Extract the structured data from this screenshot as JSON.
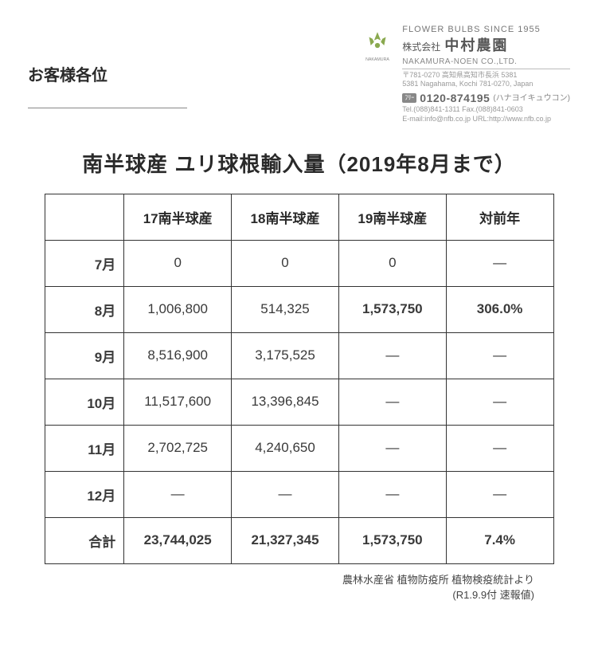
{
  "header": {
    "customer": "お客様各位",
    "tagline": "FLOWER BULBS SINCE 1955",
    "company_prefix": "株式会社",
    "company_main": "中村農園",
    "company_en": "NAKAMURA-NOEN CO.,LTD.",
    "addr1": "〒781-0270 高知県高知市長浜 5381",
    "addr2": "5381 Nagahama, Kochi 781-0270, Japan",
    "freecall_label": "ﾌﾘｰ",
    "tel": "0120-874195",
    "tel_note": "(ハナヨイキュウコン)",
    "tel2": "Tel.(088)841-1311 Fax.(088)841-0603",
    "email": "E-mail:info@nfb.co.jp URL:http://www.nfb.co.jp",
    "logo_label": "NAKAMURA",
    "logo_color": "#8aa94f"
  },
  "title": "南半球産 ユリ球根輸入量（2019年8月まで）",
  "table": {
    "columns": [
      "17南半球産",
      "18南半球産",
      "19南半球産",
      "対前年"
    ],
    "rows": [
      {
        "label": "7月",
        "cells": [
          "0",
          "0",
          "0",
          "—"
        ],
        "bold": [
          false,
          false,
          false,
          false
        ]
      },
      {
        "label": "8月",
        "cells": [
          "1,006,800",
          "514,325",
          "1,573,750",
          "306.0%"
        ],
        "bold": [
          false,
          false,
          true,
          true
        ]
      },
      {
        "label": "9月",
        "cells": [
          "8,516,900",
          "3,175,525",
          "—",
          "—"
        ],
        "bold": [
          false,
          false,
          false,
          false
        ]
      },
      {
        "label": "10月",
        "cells": [
          "11,517,600",
          "13,396,845",
          "—",
          "—"
        ],
        "bold": [
          false,
          false,
          false,
          false
        ]
      },
      {
        "label": "11月",
        "cells": [
          "2,702,725",
          "4,240,650",
          "—",
          "—"
        ],
        "bold": [
          false,
          false,
          false,
          false
        ]
      },
      {
        "label": "12月",
        "cells": [
          "—",
          "—",
          "—",
          "—"
        ],
        "bold": [
          false,
          false,
          false,
          false
        ]
      },
      {
        "label": "合計",
        "cells": [
          "23,744,025",
          "21,327,345",
          "1,573,750",
          "7.4%"
        ],
        "bold": [
          true,
          true,
          true,
          true
        ]
      }
    ],
    "border_color": "#333333",
    "font_size": 17
  },
  "source": {
    "line1": "農林水産省 植物防疫所 植物検疫統計より",
    "line2": "(R1.9.9付 速報値)"
  }
}
